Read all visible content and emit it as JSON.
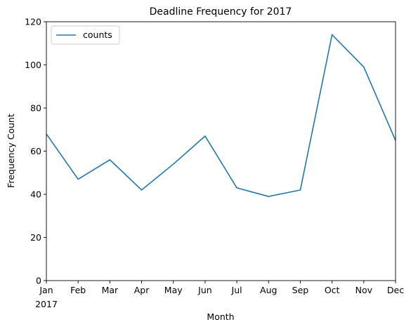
{
  "chart_data": {
    "type": "line",
    "title": "Deadline Frequency for 2017",
    "xlabel": "Month",
    "ylabel": "Frequency Count",
    "categories": [
      "Jan",
      "Feb",
      "Mar",
      "Apr",
      "May",
      "Jun",
      "Jul",
      "Aug",
      "Sep",
      "Oct",
      "Nov",
      "Dec"
    ],
    "year_label": "2017",
    "series": [
      {
        "name": "counts",
        "color": "#1f77b4",
        "values": [
          68,
          47,
          56,
          42,
          54,
          67,
          43,
          39,
          42,
          114,
          99,
          65
        ]
      }
    ],
    "ylim": [
      0,
      120
    ],
    "yticks": [
      0,
      20,
      40,
      60,
      80,
      100,
      120
    ],
    "grid": false,
    "legend_position": "top-left"
  }
}
